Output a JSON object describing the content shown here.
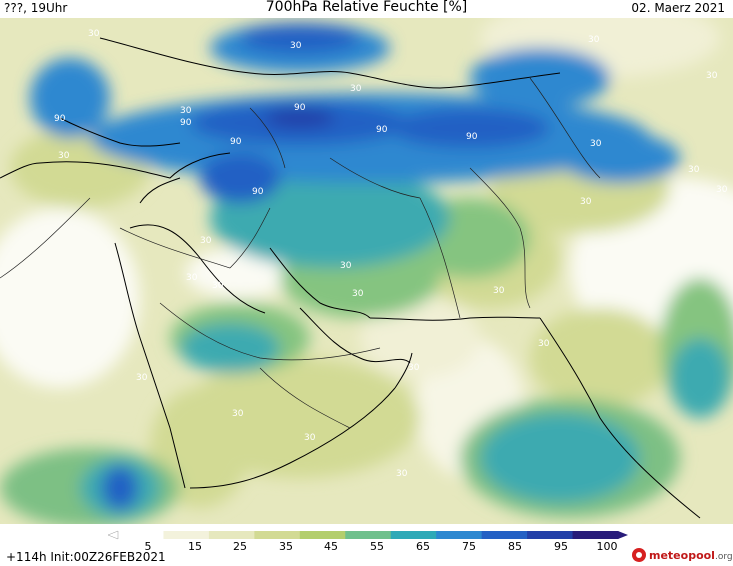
{
  "header": {
    "left": "???, 19Uhr",
    "title": "700hPa Relative Feuchte [%]",
    "right": "02. Maerz 2021"
  },
  "map": {
    "contour_labels": [
      "30",
      "30",
      "30",
      "30",
      "30",
      "30",
      "30",
      "30",
      "30",
      "30",
      "30",
      "30",
      "30",
      "30",
      "30",
      "30",
      "30",
      "30",
      "30",
      "30",
      "30",
      "30",
      "30",
      "90",
      "90",
      "90",
      "90",
      "90",
      "90",
      "90"
    ]
  },
  "colorbar": {
    "ticks": [
      "5",
      "15",
      "25",
      "35",
      "45",
      "55",
      "65",
      "75",
      "85",
      "95",
      "100"
    ],
    "colors": [
      "#ffffff",
      "#f3f2dc",
      "#e6e8be",
      "#d2da94",
      "#b3ce6c",
      "#6fc08c",
      "#2ea9b7",
      "#2d88d0",
      "#2460c4",
      "#2340a8",
      "#281c7a"
    ]
  },
  "footer": {
    "run_info": "+114h  Init:00Z26FEB2021",
    "logo_main": "meteopool",
    "logo_suffix": ".org"
  }
}
